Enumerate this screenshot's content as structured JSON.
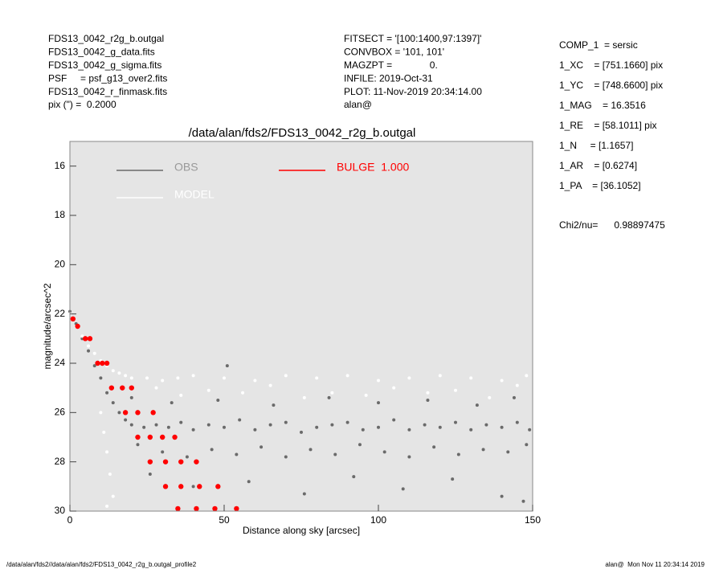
{
  "header": {
    "left": [
      "FDS13_0042_r2g_b.outgal",
      "FDS13_0042_g_data.fits",
      "FDS13_0042_g_sigma.fits",
      "PSF     = psf_g13_over2.fits",
      "FDS13_0042_r_finmask.fits",
      "pix (\") =  0.2000"
    ],
    "middle": [
      "FITSECT = '[100:1400,97:1397]'",
      "CONVBOX = '101, 101'",
      "MAGZPT =              0.",
      "INFILE: 2019-Oct-31",
      "PLOT: 11-Nov-2019 20:34:14.00",
      "alan@"
    ],
    "right": [
      "COMP_1  = sersic",
      "1_XC    = [751.1660] pix",
      "1_YC    = [748.6600] pix",
      "1_MAG    = 16.3516",
      "1_RE    = [58.1011] pix",
      "1_N     = [1.1657]",
      "1_AR    = [0.6274]",
      "1_PA    = [36.1052]",
      "Chi2/nu=      0.98897475"
    ]
  },
  "footer": {
    "left": "/data/alan/fds2//data/alan/fds2/FDS13_0042_r2g_b.outgal_profile2",
    "right": "alan@  Mon Nov 11 20:34:14 2019"
  },
  "chart_data": {
    "type": "scatter",
    "title": "/data/alan/fds2/FDS13_0042_r2g_b.outgal",
    "xlabel": "Distance along sky [arcsec]",
    "ylabel": "magnitude/arcsec^2",
    "xlim": [
      0,
      150
    ],
    "xticks": [
      0,
      50,
      100,
      150
    ],
    "ylim": [
      30,
      15
    ],
    "yticks": [
      16,
      18,
      20,
      22,
      24,
      26,
      28,
      30
    ],
    "background": "#e5e5e5",
    "series": [
      {
        "name": "OBS",
        "color": "#6a6a6a",
        "x": [
          0,
          2,
          4,
          6,
          8,
          10,
          12,
          14,
          16,
          18,
          20,
          24,
          28,
          32,
          36,
          40,
          45,
          50,
          55,
          60,
          65,
          70,
          75,
          80,
          85,
          90,
          95,
          100,
          105,
          110,
          115,
          120,
          125,
          130,
          135,
          140,
          145,
          149,
          22,
          30,
          38,
          46,
          54,
          62,
          70,
          78,
          86,
          94,
          102,
          110,
          118,
          126,
          134,
          142,
          148,
          26,
          40,
          58,
          76,
          92,
          108,
          124,
          140,
          147,
          20,
          33,
          48,
          66,
          84,
          100,
          116,
          132,
          144,
          51
        ],
        "values": [
          21.9,
          22.4,
          23.0,
          23.5,
          24.1,
          24.6,
          25.2,
          25.6,
          26.0,
          26.3,
          26.5,
          26.6,
          26.5,
          26.6,
          26.4,
          26.7,
          26.5,
          26.6,
          26.3,
          26.7,
          26.5,
          26.4,
          26.8,
          26.6,
          26.5,
          26.4,
          26.7,
          26.6,
          26.3,
          26.7,
          26.5,
          26.6,
          26.4,
          26.7,
          26.5,
          26.6,
          26.4,
          26.7,
          27.3,
          27.6,
          27.8,
          27.5,
          27.7,
          27.4,
          27.8,
          27.5,
          27.7,
          27.3,
          27.6,
          27.8,
          27.4,
          27.7,
          27.5,
          27.6,
          27.3,
          28.5,
          29.0,
          28.8,
          29.3,
          28.6,
          29.1,
          28.7,
          29.4,
          29.6,
          25.4,
          25.6,
          25.5,
          25.7,
          25.4,
          25.6,
          25.5,
          25.7,
          25.4,
          24.1
        ]
      },
      {
        "name": "MODEL",
        "color": "#ffffff",
        "x": [
          0,
          2,
          4,
          6,
          8,
          10,
          12,
          14,
          16,
          18,
          20,
          25,
          30,
          35,
          40,
          50,
          60,
          70,
          80,
          90,
          100,
          110,
          120,
          130,
          140,
          148,
          28,
          45,
          65,
          85,
          105,
          125,
          145,
          10,
          11,
          12,
          13,
          14,
          12,
          36,
          56,
          76,
          96,
          116,
          136
        ],
        "values": [
          22.0,
          22.5,
          22.9,
          23.3,
          23.6,
          23.9,
          24.1,
          24.3,
          24.4,
          24.5,
          24.6,
          24.6,
          24.7,
          24.6,
          24.5,
          24.6,
          24.7,
          24.5,
          24.6,
          24.5,
          24.7,
          24.6,
          24.5,
          24.6,
          24.7,
          24.5,
          25.0,
          25.1,
          24.9,
          25.2,
          25.0,
          25.1,
          24.9,
          26.0,
          26.8,
          27.6,
          28.5,
          29.4,
          29.8,
          25.3,
          25.2,
          25.4,
          25.3,
          25.2,
          25.4
        ]
      },
      {
        "name": "BULGE  1.000",
        "color": "#ff0000",
        "x": [
          1,
          2.5,
          5,
          6.5,
          9,
          10.5,
          12,
          13.5,
          17,
          20,
          18,
          22,
          27,
          22,
          26,
          30,
          34,
          26,
          31,
          36,
          41,
          31,
          36,
          42,
          48,
          35,
          41,
          47,
          54
        ],
        "values": [
          22.2,
          22.5,
          23,
          23,
          24,
          24,
          24,
          25,
          25,
          25,
          26,
          26,
          26,
          27,
          27,
          27,
          27,
          28,
          28,
          28,
          28,
          29,
          29,
          29,
          29,
          29.9,
          29.9,
          29.9,
          29.9
        ]
      }
    ]
  }
}
